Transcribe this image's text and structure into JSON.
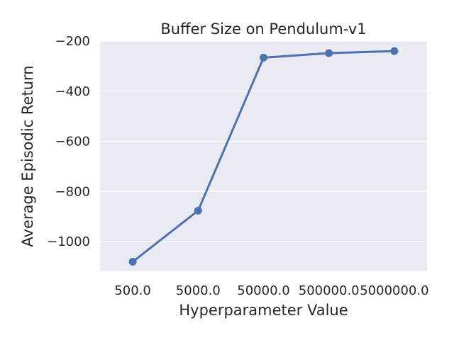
{
  "chart_data": {
    "type": "line",
    "title": "Buffer Size on Pendulum-v1",
    "xlabel": "Hyperparameter Value",
    "ylabel": "Average Episodic Return",
    "categories": [
      "500.0",
      "5000.0",
      "50000.0",
      "500000.0",
      "5000000.0"
    ],
    "series": [
      {
        "name": "",
        "values": [
          -1080,
          -876,
          -266,
          -248,
          -240
        ]
      }
    ],
    "y_ticks": [
      -200,
      -400,
      -600,
      -800,
      -1000
    ],
    "y_tick_labels": [
      "−200",
      "−400",
      "−600",
      "−800",
      "−1000"
    ],
    "ylim": [
      -1118,
      -200
    ],
    "grid": true,
    "background_color": "#eaeaf2",
    "line_color": "#4c72b0",
    "grid_color": "#ffffff"
  }
}
